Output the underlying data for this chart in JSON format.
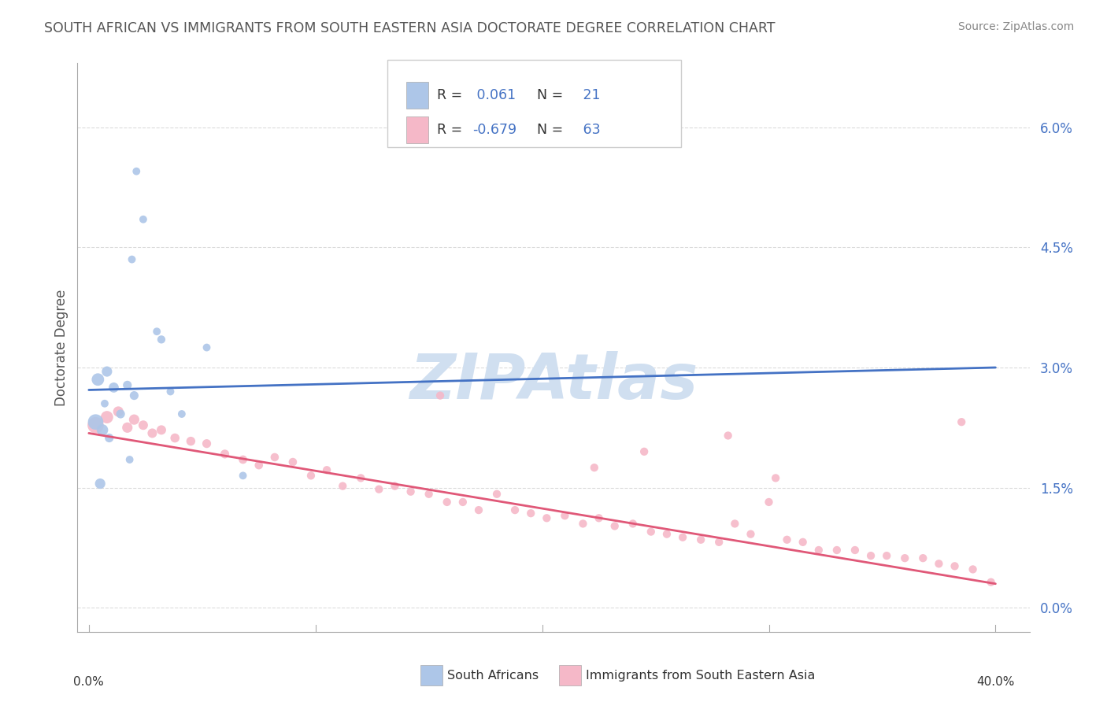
{
  "title": "SOUTH AFRICAN VS IMMIGRANTS FROM SOUTH EASTERN ASIA DOCTORATE DEGREE CORRELATION CHART",
  "source": "Source: ZipAtlas.com",
  "ylabel": "Doctorate Degree",
  "ytick_vals": [
    0.0,
    1.5,
    3.0,
    4.5,
    6.0
  ],
  "ytick_labels": [
    "0.0%",
    "1.5%",
    "3.0%",
    "4.5%",
    "6.0%"
  ],
  "ylim": [
    -0.3,
    6.8
  ],
  "xlim": [
    -0.5,
    41.5
  ],
  "xdata_min": 0.0,
  "xdata_max": 40.0,
  "blue_R": 0.061,
  "blue_N": 21,
  "pink_R": -0.679,
  "pink_N": 63,
  "blue_color": "#adc6e8",
  "blue_line_color": "#4472c4",
  "pink_color": "#f5b8c8",
  "pink_line_color": "#e05878",
  "watermark_text": "ZIPAtlas",
  "watermark_color": "#d0dff0",
  "background_color": "#ffffff",
  "grid_color": "#cccccc",
  "title_color": "#555555",
  "right_label_color": "#4472c4",
  "ylabel_color": "#555555",
  "legend_border_color": "#cccccc",
  "legend_bg": "#ffffff",
  "source_color": "#888888",
  "blue_line_start_y": 2.72,
  "blue_line_slope": 0.007,
  "pink_line_start_y": 2.18,
  "pink_line_slope": -0.047,
  "blue_x": [
    2.1,
    2.4,
    1.9,
    3.2,
    3.0,
    5.2,
    0.4,
    0.8,
    1.1,
    1.7,
    2.0,
    3.6,
    0.7,
    1.4,
    4.1,
    0.3,
    0.6,
    0.9,
    1.8,
    6.8,
    0.5
  ],
  "blue_y": [
    5.45,
    4.85,
    4.35,
    3.35,
    3.45,
    3.25,
    2.85,
    2.95,
    2.75,
    2.78,
    2.65,
    2.7,
    2.55,
    2.42,
    2.42,
    2.32,
    2.22,
    2.12,
    1.85,
    1.65,
    1.55
  ],
  "blue_sizes": [
    50,
    50,
    50,
    55,
    50,
    50,
    130,
    90,
    85,
    65,
    65,
    50,
    50,
    65,
    50,
    200,
    110,
    65,
    50,
    50,
    90
  ],
  "pink_x": [
    0.3,
    0.8,
    1.3,
    1.7,
    2.0,
    2.4,
    2.8,
    3.2,
    3.8,
    4.5,
    5.2,
    6.0,
    6.8,
    7.5,
    8.2,
    9.0,
    9.8,
    10.5,
    11.2,
    12.0,
    12.8,
    13.5,
    14.2,
    15.0,
    15.8,
    16.5,
    17.2,
    18.0,
    18.8,
    19.5,
    20.2,
    21.0,
    21.8,
    22.5,
    23.2,
    24.0,
    24.8,
    25.5,
    26.2,
    27.0,
    27.8,
    28.5,
    29.2,
    30.0,
    30.8,
    31.5,
    32.2,
    33.0,
    33.8,
    34.5,
    35.2,
    36.0,
    36.8,
    37.5,
    38.2,
    39.0,
    39.8,
    38.5,
    28.2,
    30.3,
    24.5,
    22.3,
    15.5
  ],
  "pink_y": [
    2.28,
    2.38,
    2.45,
    2.25,
    2.35,
    2.28,
    2.18,
    2.22,
    2.12,
    2.08,
    2.05,
    1.92,
    1.85,
    1.78,
    1.88,
    1.82,
    1.65,
    1.72,
    1.52,
    1.62,
    1.48,
    1.52,
    1.45,
    1.42,
    1.32,
    1.32,
    1.22,
    1.42,
    1.22,
    1.18,
    1.12,
    1.15,
    1.05,
    1.12,
    1.02,
    1.05,
    0.95,
    0.92,
    0.88,
    0.85,
    0.82,
    1.05,
    0.92,
    1.32,
    0.85,
    0.82,
    0.72,
    0.72,
    0.72,
    0.65,
    0.65,
    0.62,
    0.62,
    0.55,
    0.52,
    0.48,
    0.32,
    2.32,
    2.15,
    1.62,
    1.95,
    1.75,
    2.65
  ],
  "pink_sizes": [
    220,
    130,
    90,
    90,
    90,
    75,
    75,
    75,
    70,
    68,
    65,
    65,
    60,
    58,
    58,
    58,
    55,
    55,
    55,
    55,
    55,
    55,
    55,
    55,
    55,
    55,
    55,
    55,
    55,
    55,
    55,
    55,
    55,
    55,
    55,
    55,
    55,
    55,
    55,
    55,
    55,
    55,
    55,
    55,
    55,
    55,
    55,
    55,
    55,
    55,
    55,
    55,
    55,
    55,
    55,
    55,
    55,
    55,
    55,
    55,
    55,
    55,
    55
  ]
}
